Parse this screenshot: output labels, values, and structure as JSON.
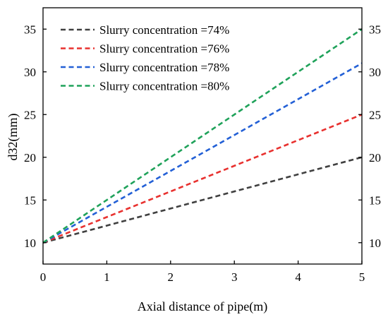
{
  "chart_data": {
    "type": "line",
    "title": "",
    "xlabel": "Axial distance of pipe(m)",
    "ylabel": "d32(mm)",
    "xlim": [
      0,
      5
    ],
    "ylim": [
      7.5,
      37.5
    ],
    "x_ticks": [
      0,
      1,
      2,
      3,
      4,
      5
    ],
    "y_ticks": [
      10,
      15,
      20,
      25,
      30,
      35
    ],
    "grid": false,
    "legend_position": "top-left",
    "line_style": "dashed",
    "right_axis_mirrored": true,
    "series": [
      {
        "name": "Slurry concentration =74%",
        "color": "#404040",
        "x": [
          0,
          5
        ],
        "y": [
          10,
          20
        ]
      },
      {
        "name": "Slurry concentration =76%",
        "color": "#e8312f",
        "x": [
          0,
          5
        ],
        "y": [
          10,
          25
        ]
      },
      {
        "name": "Slurry concentration =78%",
        "color": "#2360d6",
        "x": [
          0,
          5
        ],
        "y": [
          10,
          31
        ]
      },
      {
        "name": "Slurry concentration =80%",
        "color": "#1fa25a",
        "x": [
          0,
          5
        ],
        "y": [
          10,
          35
        ]
      }
    ]
  }
}
